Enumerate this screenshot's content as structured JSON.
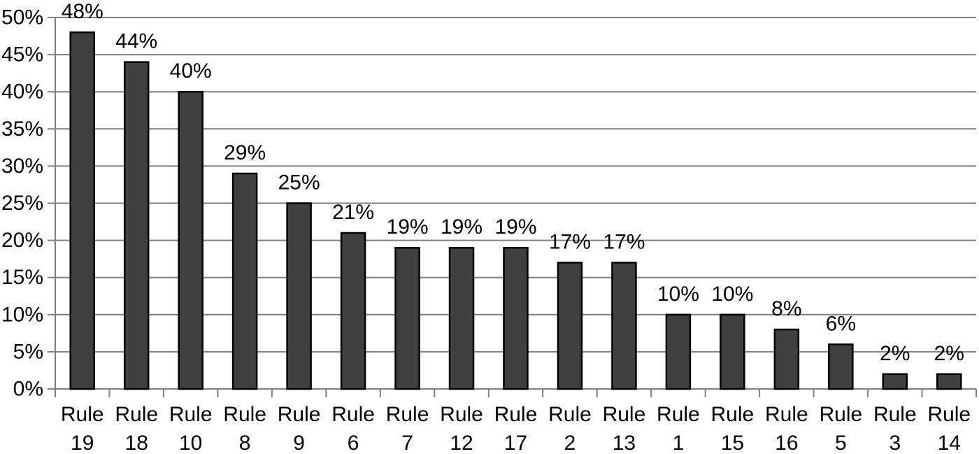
{
  "chart_data": {
    "type": "bar",
    "title": "",
    "xlabel": "",
    "ylabel": "",
    "categories": [
      "Rule 19",
      "Rule 18",
      "Rule 10",
      "Rule 8",
      "Rule 9",
      "Rule 6",
      "Rule 7",
      "Rule 12",
      "Rule 17",
      "Rule 2",
      "Rule 13",
      "Rule 1",
      "Rule 15",
      "Rule 16",
      "Rule 5",
      "Rule 3",
      "Rule 14"
    ],
    "values": [
      48,
      44,
      40,
      29,
      25,
      21,
      19,
      19,
      19,
      17,
      17,
      10,
      10,
      8,
      6,
      2,
      2
    ],
    "data_labels": [
      "48%",
      "44%",
      "40%",
      "29%",
      "25%",
      "21%",
      "19%",
      "19%",
      "19%",
      "17%",
      "17%",
      "10%",
      "10%",
      "8%",
      "6%",
      "2%",
      "2%"
    ],
    "ylim": [
      0,
      50
    ],
    "ytick_step": 5,
    "ytick_labels": [
      "0%",
      "5%",
      "10%",
      "15%",
      "20%",
      "25%",
      "30%",
      "35%",
      "40%",
      "45%",
      "50%"
    ],
    "grid": true,
    "legend": false,
    "colors": {
      "bar_fill": "#404040",
      "bar_border": "#000000",
      "gridline": "#808080",
      "axis": "#808080",
      "text": "#000000",
      "background": "#ffffff"
    }
  }
}
